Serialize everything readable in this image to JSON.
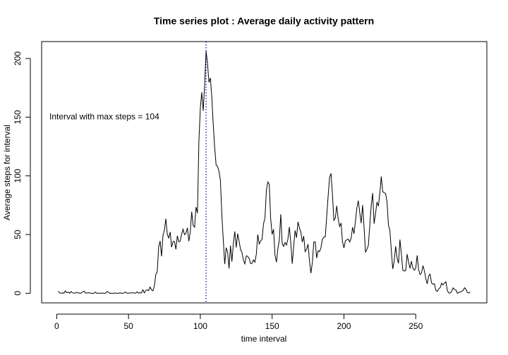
{
  "chart_data": {
    "type": "line",
    "title": "Time series plot : Average daily activity pattern",
    "x_label": "time interval",
    "y_label": "Average steps for interval",
    "annotation": "Interval with max steps =  104",
    "vline": 104,
    "vline_color": "#000080",
    "color": "#000000",
    "x": [
      1,
      2,
      3,
      4,
      5,
      6,
      7,
      8,
      9,
      10,
      11,
      12,
      13,
      14,
      15,
      16,
      17,
      18,
      19,
      20,
      21,
      22,
      23,
      24,
      25,
      26,
      27,
      28,
      29,
      30,
      31,
      32,
      33,
      34,
      35,
      36,
      37,
      38,
      39,
      40,
      41,
      42,
      43,
      44,
      45,
      46,
      47,
      48,
      49,
      50,
      51,
      52,
      53,
      54,
      55,
      56,
      57,
      58,
      59,
      60,
      61,
      62,
      63,
      64,
      65,
      66,
      67,
      68,
      69,
      70,
      71,
      72,
      73,
      74,
      75,
      76,
      77,
      78,
      79,
      80,
      81,
      82,
      83,
      84,
      85,
      86,
      87,
      88,
      89,
      90,
      91,
      92,
      93,
      94,
      95,
      96,
      97,
      98,
      99,
      100,
      101,
      102,
      103,
      104,
      105,
      106,
      107,
      108,
      109,
      110,
      111,
      112,
      113,
      114,
      115,
      116,
      117,
      118,
      119,
      120,
      121,
      122,
      123,
      124,
      125,
      126,
      127,
      128,
      129,
      130,
      131,
      132,
      133,
      134,
      135,
      136,
      137,
      138,
      139,
      140,
      141,
      142,
      143,
      144,
      145,
      146,
      147,
      148,
      149,
      150,
      151,
      152,
      153,
      154,
      155,
      156,
      157,
      158,
      159,
      160,
      161,
      162,
      163,
      164,
      165,
      166,
      167,
      168,
      169,
      170,
      171,
      172,
      173,
      174,
      175,
      176,
      177,
      178,
      179,
      180,
      181,
      182,
      183,
      184,
      185,
      186,
      187,
      188,
      189,
      190,
      191,
      192,
      193,
      194,
      195,
      196,
      197,
      198,
      199,
      200,
      201,
      202,
      203,
      204,
      205,
      206,
      207,
      208,
      209,
      210,
      211,
      212,
      213,
      214,
      215,
      216,
      217,
      218,
      219,
      220,
      221,
      222,
      223,
      224,
      225,
      226,
      227,
      228,
      229,
      230,
      231,
      232,
      233,
      234,
      235,
      236,
      237,
      238,
      239,
      240,
      241,
      242,
      243,
      244,
      245,
      246,
      247,
      248,
      249,
      250,
      251,
      252,
      253,
      254,
      255,
      256,
      257,
      258,
      259,
      260,
      261,
      262,
      263,
      264,
      265,
      266,
      267,
      268,
      269,
      270,
      271,
      272,
      273,
      274,
      275,
      276,
      277,
      278,
      279,
      280,
      281,
      282,
      283,
      284,
      285,
      286,
      287,
      288
    ],
    "values": [
      1.7,
      0.3,
      0.1,
      0.2,
      0.1,
      2.1,
      0.5,
      0.9,
      0,
      1.5,
      0.3,
      0.1,
      0.3,
      0.7,
      0.2,
      0.3,
      0,
      1.1,
      1.8,
      0.2,
      0.2,
      0.4,
      0.3,
      0,
      0,
      0,
      1.1,
      0,
      0,
      0.1,
      0,
      0.2,
      0,
      0,
      1.5,
      0.9,
      0,
      0,
      0,
      0,
      0.2,
      0,
      0,
      0.4,
      0,
      0,
      0.3,
      1.1,
      0,
      0.1,
      0.1,
      0.3,
      0.5,
      0.1,
      0.2,
      1.2,
      0,
      0.5,
      0.2,
      3.0,
      0.3,
      2.3,
      3.0,
      2.2,
      5.3,
      2.9,
      2.1,
      6.1,
      16.0,
      18.3,
      39.5,
      44.5,
      31.5,
      49.3,
      53.8,
      63.5,
      50.0,
      47.1,
      52.2,
      39.3,
      44.0,
      44.2,
      37.4,
      49.0,
      43.8,
      44.4,
      50.5,
      54.5,
      49.9,
      51.0,
      55.7,
      44.3,
      52.3,
      69.5,
      57.8,
      56.2,
      73.4,
      68.2,
      129.4,
      157.5,
      171.2,
      155.4,
      177.3,
      206.2,
      195.9,
      179.6,
      183.4,
      167.0,
      143.5,
      124.0,
      109.1,
      108.1,
      103.7,
      95.9,
      66.2,
      45.2,
      24.8,
      38.8,
      35.0,
      21.1,
      40.6,
      27.0,
      42.4,
      52.7,
      38.9,
      50.8,
      44.3,
      37.4,
      34.7,
      28.3,
      25.1,
      31.9,
      31.4,
      29.7,
      25.2,
      25.5,
      28.4,
      26.5,
      33.3,
      50.0,
      42.0,
      44.6,
      46.0,
      59.2,
      63.9,
      87.7,
      94.8,
      92.8,
      63.4,
      50.2,
      54.5,
      32.4,
      26.5,
      37.7,
      45.1,
      67.3,
      42.3,
      39.9,
      43.3,
      41.0,
      46.2,
      56.4,
      42.8,
      25.1,
      40.0,
      53.5,
      47.3,
      60.8,
      55.8,
      52.0,
      43.6,
      48.7,
      35.5,
      37.5,
      41.8,
      27.5,
      17.1,
      26.1,
      43.6,
      43.8,
      30.0,
      36.1,
      35.5,
      38.8,
      46.0,
      47.8,
      48.1,
      65.3,
      82.9,
      98.7,
      102.1,
      84.0,
      62.1,
      64.1,
      74.5,
      63.2,
      56.9,
      59.8,
      43.9,
      38.6,
      44.7,
      45.5,
      46.2,
      43.7,
      46.6,
      56.3,
      50.7,
      61.2,
      72.7,
      78.9,
      68.9,
      59.7,
      75.1,
      56.5,
      34.8,
      37.5,
      40.7,
      58.0,
      74.7,
      85.3,
      59.3,
      67.8,
      77.7,
      74.2,
      85.3,
      99.5,
      86.6,
      85.6,
      84.9,
      77.8,
      58.0,
      53.4,
      36.3,
      20.7,
      27.4,
      40.0,
      30.2,
      25.5,
      45.7,
      33.5,
      19.6,
      19.0,
      19.3,
      33.3,
      26.8,
      21.2,
      27.3,
      21.3,
      19.6,
      21.3,
      32.3,
      20.2,
      15.9,
      17.2,
      23.5,
      19.2,
      12.5,
      8.0,
      14.7,
      16.3,
      8.7,
      7.8,
      8.1,
      2.6,
      1.5,
      3.7,
      4.8,
      8.5,
      7.1,
      8.7,
      9.8,
      2.2,
      0.3,
      0.1,
      1.6,
      4.6,
      3.3,
      2.8,
      0,
      0.8,
      1.0,
      1.6,
      2.6,
      4.7,
      3.3,
      0.6,
      0.2,
      1.1
    ],
    "xlim": [
      -10.5,
      299.5
    ],
    "ylim": [
      -8.2,
      214.4
    ],
    "xticks": [
      0,
      50,
      100,
      150,
      200,
      250
    ],
    "yticks": [
      0,
      50,
      100,
      150,
      200
    ]
  }
}
